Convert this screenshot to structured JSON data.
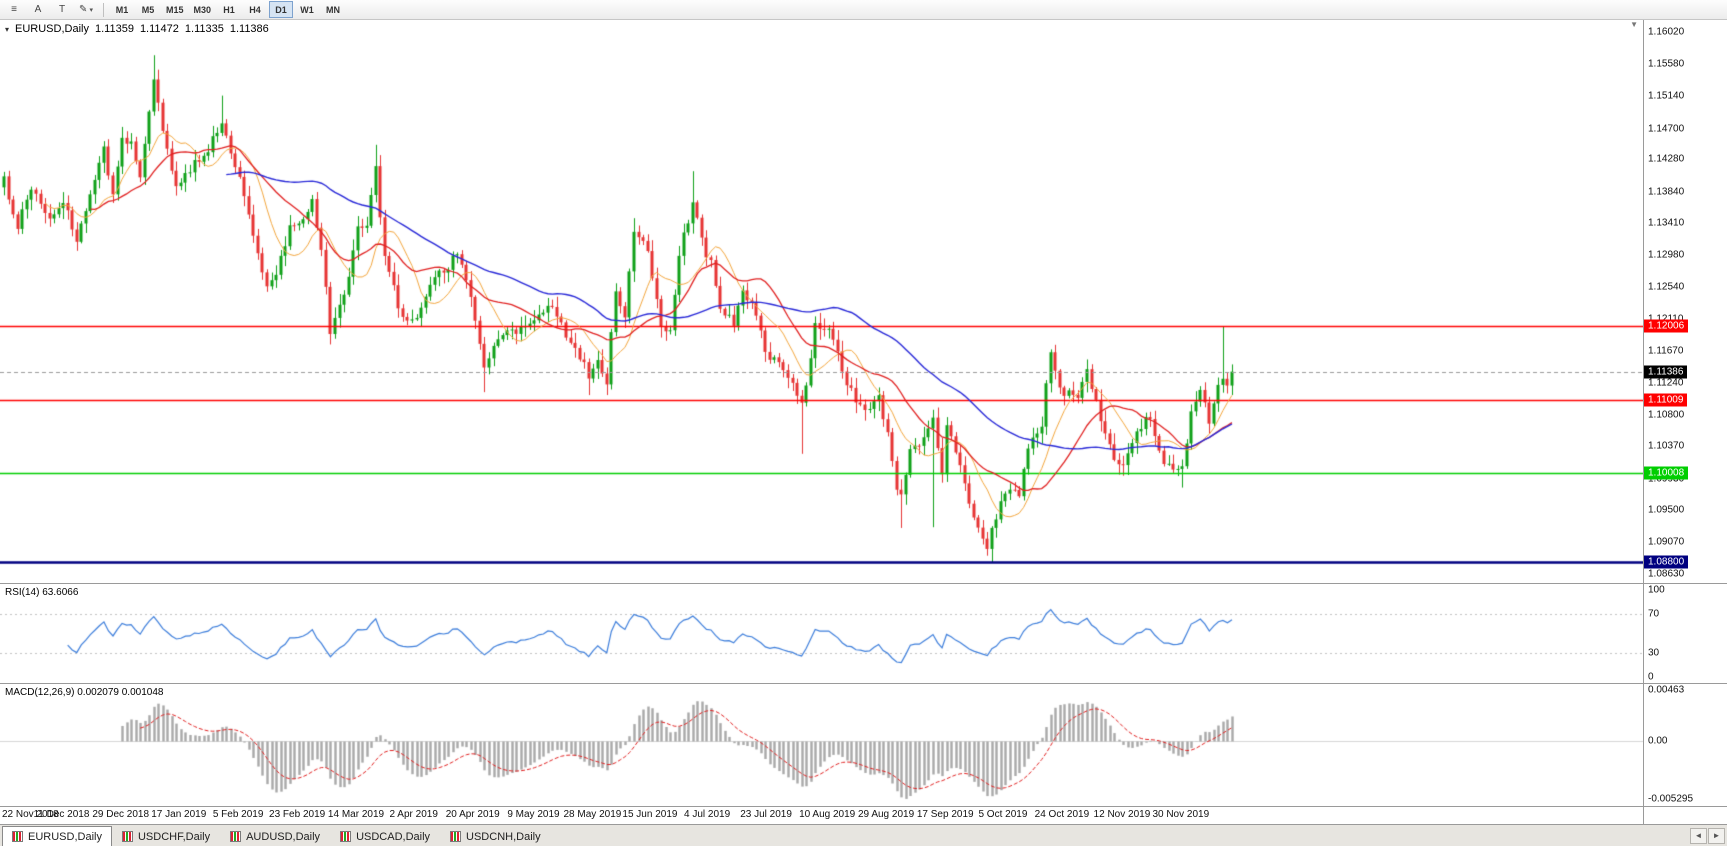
{
  "icons": {
    "collapse": "▾",
    "shift_marker": "▼",
    "chevron_down": "▾",
    "tab_left": "◄",
    "tab_right": "►"
  },
  "toolbar": {
    "icons": [
      {
        "name": "chart-list-icon",
        "glyph": "≡"
      },
      {
        "name": "cursor-tool-icon",
        "glyph": "A"
      },
      {
        "name": "text-tool-icon",
        "glyph": "T"
      },
      {
        "name": "draw-tool-icon",
        "glyph": "✎",
        "dropdown": true
      }
    ],
    "timeframes": [
      "M1",
      "M5",
      "M15",
      "M30",
      "H1",
      "H4",
      "D1",
      "W1",
      "MN"
    ],
    "active_timeframe": "D1"
  },
  "header": {
    "symbol": "EURUSD,Daily",
    "open": "1.11359",
    "high": "1.11472",
    "low": "1.11335",
    "close": "1.11386"
  },
  "price_axis": {
    "labels": [
      "1.16020",
      "1.15580",
      "1.15140",
      "1.14700",
      "1.14280",
      "1.13840",
      "1.13410",
      "1.12980",
      "1.12540",
      "1.12110",
      "1.11670",
      "1.11240",
      "1.10800",
      "1.10370",
      "1.09930",
      "1.09500",
      "1.09070",
      "1.08630"
    ]
  },
  "time_axis": {
    "labels": [
      {
        "text": "22 Nov 2018",
        "i": 0
      },
      {
        "text": "11 Dec 2018",
        "i": 13
      },
      {
        "text": "29 Dec 2018",
        "i": 26
      },
      {
        "text": "17 Jan 2019",
        "i": 39
      },
      {
        "text": "5 Feb 2019",
        "i": 52
      },
      {
        "text": "23 Feb 2019",
        "i": 65
      },
      {
        "text": "14 Mar 2019",
        "i": 78
      },
      {
        "text": "2 Apr 2019",
        "i": 91
      },
      {
        "text": "20 Apr 2019",
        "i": 104
      },
      {
        "text": "9 May 2019",
        "i": 117
      },
      {
        "text": "28 May 2019",
        "i": 130
      },
      {
        "text": "15 Jun 2019",
        "i": 143
      },
      {
        "text": "4 Jul 2019",
        "i": 156
      },
      {
        "text": "23 Jul 2019",
        "i": 169
      },
      {
        "text": "10 Aug 2019",
        "i": 182
      },
      {
        "text": "29 Aug 2019",
        "i": 195
      },
      {
        "text": "17 Sep 2019",
        "i": 208
      },
      {
        "text": "5 Oct 2019",
        "i": 221
      },
      {
        "text": "24 Oct 2019",
        "i": 234
      },
      {
        "text": "12 Nov 2019",
        "i": 247
      },
      {
        "text": "30 Nov 2019",
        "i": 260
      }
    ]
  },
  "tabs": [
    {
      "label": "EURUSD,Daily",
      "active": true
    },
    {
      "label": "USDCHF,Daily",
      "active": false
    },
    {
      "label": "AUDUSD,Daily",
      "active": false
    },
    {
      "label": "USDCAD,Daily",
      "active": false
    },
    {
      "label": "USDCNH,Daily",
      "active": false
    }
  ],
  "chart_data": {
    "type": "candlestick",
    "title": "EURUSD Daily",
    "symbol": "EURUSD",
    "timeframe": "Daily",
    "n_candles": 272,
    "right_fill": 0.75,
    "price_range": [
      1.0851,
      1.1618
    ],
    "colors": {
      "bull": "#0FA018",
      "bear": "#E63434"
    },
    "anchors": [
      [
        0,
        1.1405
      ],
      [
        3,
        1.133
      ],
      [
        6,
        1.139
      ],
      [
        10,
        1.1345
      ],
      [
        13,
        1.1375
      ],
      [
        16,
        1.1312
      ],
      [
        19,
        1.139
      ],
      [
        22,
        1.1442
      ],
      [
        24,
        1.1382
      ],
      [
        26,
        1.1452
      ],
      [
        28,
        1.1448
      ],
      [
        30,
        1.1395
      ],
      [
        33,
        1.1545
      ],
      [
        35,
        1.1472
      ],
      [
        38,
        1.1392
      ],
      [
        42,
        1.1422
      ],
      [
        45,
        1.1438
      ],
      [
        48,
        1.1482
      ],
      [
        50,
        1.1445
      ],
      [
        52,
        1.1412
      ],
      [
        55,
        1.1332
      ],
      [
        58,
        1.1262
      ],
      [
        60,
        1.1272
      ],
      [
        63,
        1.1332
      ],
      [
        65,
        1.1335
      ],
      [
        68,
        1.1372
      ],
      [
        70,
        1.1302
      ],
      [
        72,
        1.1195
      ],
      [
        75,
        1.1242
      ],
      [
        78,
        1.1325
      ],
      [
        80,
        1.1342
      ],
      [
        82,
        1.1415
      ],
      [
        84,
        1.1292
      ],
      [
        87,
        1.1222
      ],
      [
        91,
        1.1207
      ],
      [
        94,
        1.1252
      ],
      [
        97,
        1.1272
      ],
      [
        100,
        1.1302
      ],
      [
        103,
        1.1242
      ],
      [
        106,
        1.1152
      ],
      [
        109,
        1.1177
      ],
      [
        112,
        1.1202
      ],
      [
        115,
        1.1197
      ],
      [
        117,
        1.1217
      ],
      [
        120,
        1.1232
      ],
      [
        123,
        1.1207
      ],
      [
        126,
        1.1167
      ],
      [
        129,
        1.1132
      ],
      [
        131,
        1.1162
      ],
      [
        133,
        1.1132
      ],
      [
        135,
        1.1252
      ],
      [
        137,
        1.1222
      ],
      [
        139,
        1.1335
      ],
      [
        142,
        1.1312
      ],
      [
        145,
        1.1212
      ],
      [
        147,
        1.1197
      ],
      [
        149,
        1.1297
      ],
      [
        152,
        1.1367
      ],
      [
        155,
        1.1287
      ],
      [
        156,
        1.1282
      ],
      [
        158,
        1.1227
      ],
      [
        161,
        1.1207
      ],
      [
        163,
        1.1257
      ],
      [
        166,
        1.1217
      ],
      [
        169,
        1.1152
      ],
      [
        171,
        1.1147
      ],
      [
        174,
        1.1112
      ],
      [
        176,
        1.1087
      ],
      [
        177,
        1.1108
      ],
      [
        179,
        1.1202
      ],
      [
        182,
        1.1202
      ],
      [
        185,
        1.1142
      ],
      [
        188,
        1.1102
      ],
      [
        191,
        1.1082
      ],
      [
        193,
        1.1102
      ],
      [
        195,
        1.1057
      ],
      [
        197,
        1.0972
      ],
      [
        198,
        1.0972
      ],
      [
        200,
        1.1037
      ],
      [
        203,
        1.1047
      ],
      [
        205,
        1.1067
      ],
      [
        207,
        1.1007
      ],
      [
        208,
        1.1072
      ],
      [
        211,
        1.1017
      ],
      [
        214,
        1.0942
      ],
      [
        217,
        1.0902
      ],
      [
        218,
        1.0932
      ],
      [
        221,
        1.0979
      ],
      [
        224,
        1.0972
      ],
      [
        226,
        1.1042
      ],
      [
        229,
        1.1077
      ],
      [
        231,
        1.1172
      ],
      [
        234,
        1.1107
      ],
      [
        237,
        1.1112
      ],
      [
        239,
        1.1152
      ],
      [
        242,
        1.1077
      ],
      [
        245,
        1.1018
      ],
      [
        247,
        1.1012
      ],
      [
        250,
        1.1052
      ],
      [
        253,
        1.1077
      ],
      [
        256,
        1.1017
      ],
      [
        258,
        1.1002
      ],
      [
        260,
        1.1018
      ],
      [
        262,
        1.1082
      ],
      [
        264,
        1.1104
      ],
      [
        266,
        1.1067
      ],
      [
        268,
        1.113
      ],
      [
        269,
        1.1132
      ],
      [
        270,
        1.112
      ],
      [
        271,
        1.1139
      ]
    ],
    "spikes": [
      {
        "i": 33,
        "high": 1.157
      },
      {
        "i": 48,
        "high": 1.1515
      },
      {
        "i": 72,
        "low": 1.1176
      },
      {
        "i": 82,
        "high": 1.1448
      },
      {
        "i": 87,
        "low": 1.1214
      },
      {
        "i": 106,
        "low": 1.1111
      },
      {
        "i": 129,
        "low": 1.1107
      },
      {
        "i": 139,
        "high": 1.1348
      },
      {
        "i": 152,
        "high": 1.1412
      },
      {
        "i": 176,
        "low": 1.1027
      },
      {
        "i": 198,
        "low": 1.0926
      },
      {
        "i": 205,
        "low": 1.0927,
        "high": 1.1087
      },
      {
        "i": 218,
        "low": 1.0879
      },
      {
        "i": 260,
        "low": 1.0981
      },
      {
        "i": 269,
        "high": 1.12
      }
    ],
    "moving_averages": [
      {
        "period": 10,
        "color": "#F2A53C",
        "width": 1
      },
      {
        "period": 20,
        "color": "#E02020",
        "width": 1.3
      },
      {
        "period": 50,
        "color": "#2828D7",
        "width": 1.4
      }
    ],
    "levels": [
      {
        "label": "1.12006",
        "price": 1.12006,
        "color": "#FF0000",
        "width": 1.5
      },
      {
        "label": "1.11009",
        "price": 1.11009,
        "color": "#FF0000",
        "width": 1.5
      },
      {
        "label": "1.10008",
        "price": 1.10008,
        "color": "#00CE00",
        "width": 1.5
      },
      {
        "label": "1.08800",
        "price": 1.088,
        "color": "#000080",
        "width": 2.5
      }
    ],
    "current": {
      "label": "1.11386",
      "price": 1.11386,
      "badge_color": "#000000",
      "line_color": "#9a9a9a"
    },
    "indicators": {
      "rsi": {
        "label": "RSI(14) 63.6066",
        "period": 14,
        "value": 63.6066,
        "levels": [
          70,
          30
        ],
        "axis_labels": [
          "100",
          "70",
          "30",
          "0"
        ],
        "color": "#3D7EDB"
      },
      "macd": {
        "label": "MACD(12,26,9) 0.002079 0.001048",
        "fast": 12,
        "slow": 26,
        "signal": 9,
        "main_value": 0.002079,
        "signal_value": 0.001048,
        "range": [
          -0.005295,
          0.00463
        ],
        "axis_labels": [
          "0.00463",
          "0.00",
          "-0.005295"
        ],
        "hist_color": "#A8A8A8",
        "signal_color": "#E02020"
      }
    }
  }
}
